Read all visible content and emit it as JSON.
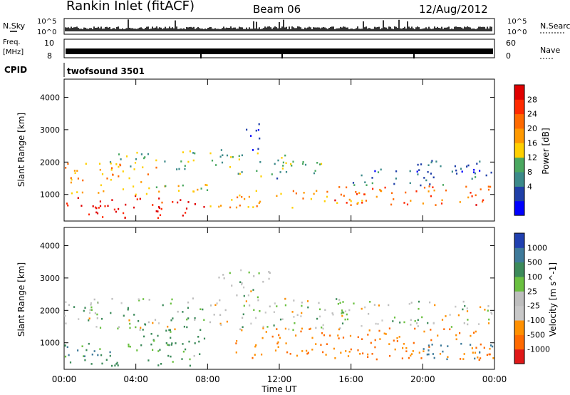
{
  "header": {
    "station": "Rankin Inlet (fitACF)",
    "beam": "Beam 06",
    "date": "12/Aug/2012"
  },
  "strips": {
    "nsky_label": "N.Sky",
    "nsearch_label": "N.Search",
    "freq_label_line1": "Freq.",
    "freq_label_line2": "[MHz]",
    "nave_label": "Nave",
    "cpid_label": "CPID",
    "noise_ticks": [
      "10^5",
      "10^0"
    ],
    "freq_ticks": [
      "10",
      "8"
    ],
    "nave_ticks": [
      "60",
      "0"
    ],
    "cpid_text": "twofsound 3501"
  },
  "colors": {
    "power_scale": [
      "#0000ff",
      "#1f3fa8",
      "#3c8a8a",
      "#4aa860",
      "#ffd000",
      "#ff9900",
      "#ff6a00",
      "#ff2a00",
      "#e00000"
    ],
    "velocity_scale": [
      "#2040b0",
      "#3e7a9a",
      "#3c8a5a",
      "#6ac040",
      "#bebebe",
      "#c8c8c8",
      "#ff9000",
      "#ff6a00",
      "#e01818"
    ]
  },
  "chart_data": [
    {
      "type": "heatmap",
      "title": "",
      "xlabel": "Time UT",
      "ylabel": "Slant Range [km]",
      "x_ticks": [
        "00:00",
        "04:00",
        "08:00",
        "12:00",
        "16:00",
        "20:00",
        "00:00"
      ],
      "xlim_hours": [
        0,
        24
      ],
      "y_ticks": [
        1000,
        2000,
        3000,
        4000
      ],
      "ylim_km": [
        180,
        4560
      ],
      "colorbar": {
        "label": "Power [dB]",
        "ticks": [
          "28",
          "24",
          "20",
          "16",
          "12",
          "8",
          "4"
        ],
        "range": [
          0,
          32
        ]
      },
      "echo_regions": [
        {
          "t0": 0.0,
          "t1": 7.8,
          "r0": 300,
          "r1": 1000,
          "value": 28
        },
        {
          "t0": 0.0,
          "t1": 8.0,
          "r0": 1000,
          "r1": 1400,
          "value": 16
        },
        {
          "t0": 0.0,
          "t1": 5.5,
          "r0": 1400,
          "r1": 2000,
          "value": 20
        },
        {
          "t0": 2.5,
          "t1": 9.5,
          "r0": 1800,
          "r1": 2400,
          "value": 12
        },
        {
          "t0": 8.0,
          "t1": 17.0,
          "r0": 600,
          "r1": 1200,
          "value": 20
        },
        {
          "t0": 9.5,
          "t1": 14.5,
          "r0": 1500,
          "r1": 2300,
          "value": 12
        },
        {
          "t0": 15.0,
          "t1": 24.0,
          "r0": 700,
          "r1": 1300,
          "value": 24
        },
        {
          "t0": 16.0,
          "t1": 22.0,
          "r0": 1300,
          "r1": 1800,
          "value": 8
        },
        {
          "t0": 10.0,
          "t1": 11.0,
          "r0": 2400,
          "r1": 3300,
          "value": 4
        },
        {
          "t0": 19.0,
          "t1": 24.0,
          "r0": 1500,
          "r1": 2100,
          "value": 6
        }
      ]
    },
    {
      "type": "heatmap",
      "title": "",
      "xlabel": "Time UT",
      "ylabel": "Slant Range [km]",
      "x_ticks": [
        "00:00",
        "04:00",
        "08:00",
        "12:00",
        "16:00",
        "20:00",
        "00:00"
      ],
      "xlim_hours": [
        0,
        24
      ],
      "y_ticks": [
        1000,
        2000,
        3000,
        4000
      ],
      "ylim_km": [
        180,
        4560
      ],
      "colorbar": {
        "label": "Velocity [m s^-1]",
        "ticks": [
          "1000",
          "500",
          "100",
          "25",
          "-25",
          "-100",
          "-500",
          "-1000"
        ]
      },
      "echo_regions": [
        {
          "t0": 0.0,
          "t1": 8.0,
          "r0": 300,
          "r1": 1000,
          "value": 100
        },
        {
          "t0": 0.0,
          "t1": 3.0,
          "r0": 600,
          "r1": 900,
          "value": 500
        },
        {
          "t0": 4.0,
          "t1": 8.0,
          "r0": 1000,
          "r1": 1800,
          "value": 100
        },
        {
          "t0": 0.0,
          "t1": 16.0,
          "r0": 1400,
          "r1": 2400,
          "value": 0
        },
        {
          "t0": 8.5,
          "t1": 11.5,
          "r0": 2400,
          "r1": 3300,
          "value": 0
        },
        {
          "t0": 9.5,
          "t1": 24.0,
          "r0": 500,
          "r1": 1500,
          "value": -300
        },
        {
          "t0": 20.0,
          "t1": 24.0,
          "r0": 500,
          "r1": 1000,
          "value": 500
        },
        {
          "t0": 15.0,
          "t1": 24.0,
          "r0": 1500,
          "r1": 2300,
          "value": 0
        }
      ]
    }
  ]
}
